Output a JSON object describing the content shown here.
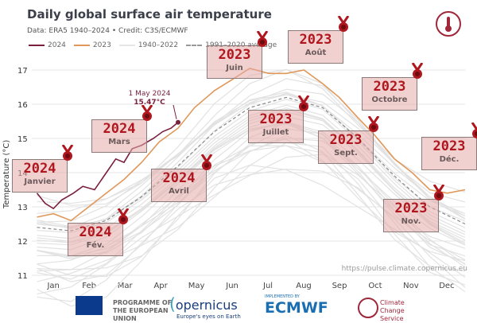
{
  "chart_data": {
    "type": "line",
    "title": "Daily global surface air temperature",
    "subtitle": "Data: ERA5 1940–2024 • Credit: C3S/ECMWF",
    "ylabel": "Temperature (°C)",
    "xlabel": "",
    "ylim": [
      11,
      17.5
    ],
    "yticks": [
      "11",
      "12",
      "13",
      "14",
      "15",
      "16",
      "17"
    ],
    "xticks": [
      "Jan",
      "Feb",
      "Mar",
      "Apr",
      "May",
      "Jun",
      "Jul",
      "Aug",
      "Sep",
      "Oct",
      "Nov",
      "Dec"
    ],
    "legend": [
      "2024",
      "2023",
      "1940–2022",
      "1991–2020 average"
    ],
    "series": [
      {
        "name": "2024",
        "color": "#7a1f3d",
        "points": [
          [
            1,
            13.4
          ],
          [
            8,
            13.1
          ],
          [
            15,
            12.95
          ],
          [
            22,
            13.2
          ],
          [
            32,
            13.4
          ],
          [
            40,
            13.6
          ],
          [
            50,
            13.5
          ],
          [
            60,
            14.0
          ],
          [
            68,
            14.4
          ],
          [
            75,
            14.3
          ],
          [
            82,
            14.7
          ],
          [
            90,
            14.8
          ],
          [
            100,
            15.0
          ],
          [
            108,
            15.2
          ],
          [
            115,
            15.3
          ],
          [
            121,
            15.47
          ]
        ]
      },
      {
        "name": "2023",
        "color": "#e0985a",
        "points": [
          [
            1,
            12.7
          ],
          [
            15,
            12.8
          ],
          [
            30,
            12.6
          ],
          [
            45,
            13.0
          ],
          [
            60,
            13.4
          ],
          [
            75,
            13.8
          ],
          [
            90,
            14.3
          ],
          [
            105,
            14.9
          ],
          [
            121,
            15.3
          ],
          [
            135,
            15.9
          ],
          [
            152,
            16.4
          ],
          [
            166,
            16.7
          ],
          [
            182,
            17.05
          ],
          [
            198,
            16.9
          ],
          [
            213,
            16.9
          ],
          [
            228,
            17.0
          ],
          [
            244,
            16.6
          ],
          [
            258,
            16.2
          ],
          [
            274,
            15.6
          ],
          [
            288,
            15.1
          ],
          [
            305,
            14.4
          ],
          [
            320,
            14.0
          ],
          [
            335,
            13.5
          ],
          [
            350,
            13.4
          ],
          [
            365,
            13.5
          ]
        ]
      },
      {
        "name": "1991–2020 average",
        "color": "#888888",
        "points": [
          [
            1,
            12.4
          ],
          [
            30,
            12.3
          ],
          [
            60,
            12.6
          ],
          [
            90,
            13.3
          ],
          [
            121,
            14.2
          ],
          [
            152,
            15.2
          ],
          [
            182,
            15.9
          ],
          [
            213,
            16.2
          ],
          [
            244,
            15.9
          ],
          [
            274,
            15.0
          ],
          [
            305,
            13.9
          ],
          [
            335,
            13.0
          ],
          [
            365,
            12.5
          ]
        ]
      }
    ],
    "annotation": {
      "date": "1 May 2024",
      "value": "15.47°C"
    },
    "records": [
      {
        "year": "2024",
        "month": "Janvier"
      },
      {
        "year": "2024",
        "month": "Fév."
      },
      {
        "year": "2024",
        "month": "Mars"
      },
      {
        "year": "2024",
        "month": "Avril"
      },
      {
        "year": "2023",
        "month": "Juin"
      },
      {
        "year": "2023",
        "month": "Juillet"
      },
      {
        "year": "2023",
        "month": "Août"
      },
      {
        "year": "2023",
        "month": "Sept."
      },
      {
        "year": "2023",
        "month": "Octobre"
      },
      {
        "year": "2023",
        "month": "Nov."
      },
      {
        "year": "2023",
        "month": "Déc."
      },
      {
        "year": "2023",
        "month": ""
      }
    ],
    "source_url": "https://pulse.climate.copernicus.eu"
  },
  "footer": {
    "eu": "PROGRAMME OF THE EUROPEAN UNION",
    "copernicus": "opernicus",
    "copernicus_tag": "Europe's eyes on Earth",
    "implemented": "IMPLEMENTED BY",
    "ecmwf": "ECMWF",
    "c3s": "Climate Change Service"
  }
}
